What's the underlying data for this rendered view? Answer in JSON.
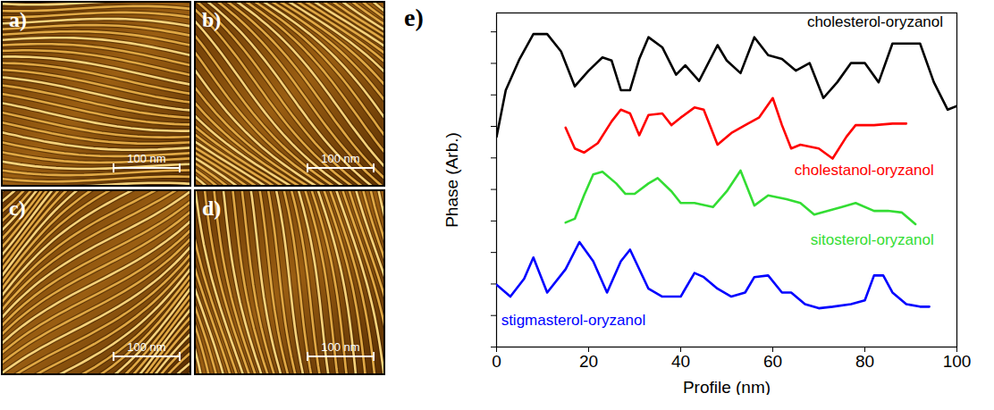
{
  "panels": [
    {
      "label": "a)",
      "scale_bar": "100 nm"
    },
    {
      "label": "b)",
      "scale_bar": "100 nm"
    },
    {
      "label": "c)",
      "scale_bar": "100 nm"
    },
    {
      "label": "d)",
      "scale_bar": "100 nm"
    }
  ],
  "chart_data": {
    "type": "line",
    "panel_label": "e)",
    "x_label": "Profile (nm)",
    "y_label": "Phase (Arb.)",
    "xlim": [
      0,
      100
    ],
    "xticks": [
      0,
      20,
      40,
      60,
      80,
      100
    ],
    "ylim": [
      0,
      106
    ],
    "yticks": [
      0,
      10,
      20,
      30,
      40,
      50,
      60,
      70,
      80,
      90,
      100
    ],
    "tick_labels": "x",
    "series": [
      {
        "name": "cholesterol-oryzanol",
        "color": "#000000",
        "x": [
          0,
          2,
          5,
          8,
          11,
          14,
          17,
          20,
          23,
          25,
          27,
          29,
          31,
          33,
          36,
          39,
          41,
          44,
          48,
          50,
          53,
          56,
          59,
          62,
          65,
          68,
          71,
          74,
          77,
          80,
          83,
          86,
          89,
          92,
          95,
          98,
          100
        ],
        "values": [
          66.7,
          81.5,
          91.4,
          99.3,
          99.3,
          93.8,
          82.7,
          87.7,
          91.9,
          90.9,
          81.5,
          81.5,
          91.4,
          98.3,
          95.1,
          86.4,
          89.4,
          84.4,
          95.8,
          90.9,
          86.9,
          98.3,
          92.6,
          91.4,
          87.7,
          90.1,
          79.0,
          84.0,
          90.1,
          90.1,
          84.0,
          96.3,
          96.3,
          96.3,
          84.0,
          75.3,
          76.5
        ]
      },
      {
        "name": "cholestanol-oryzanol",
        "color": "#ff0000",
        "x": [
          15,
          17,
          19,
          22,
          25,
          27,
          29,
          31,
          33,
          36,
          38,
          40,
          43,
          45,
          48,
          51,
          54,
          57,
          60,
          62,
          64,
          66,
          70,
          73,
          76,
          78,
          82,
          86,
          89
        ],
        "values": [
          69.6,
          63.0,
          61.7,
          64.7,
          71.6,
          75.3,
          74.1,
          67.2,
          73.6,
          74.1,
          70.4,
          72.8,
          76.0,
          75.3,
          64.2,
          67.9,
          70.4,
          72.8,
          79.0,
          70.4,
          63.0,
          64.2,
          63.0,
          59.8,
          66.7,
          70.4,
          70.4,
          70.9,
          70.9
        ]
      },
      {
        "name": "sitosterol-oryzanol",
        "color": "#33dd33",
        "x": [
          15,
          17,
          19,
          21,
          23,
          26,
          28,
          30,
          33,
          35,
          38,
          40,
          43,
          47,
          50,
          53,
          56,
          59,
          63,
          66,
          69,
          72,
          75,
          78,
          82,
          85,
          88,
          91
        ],
        "values": [
          39.5,
          40.7,
          48.1,
          54.8,
          55.6,
          51.9,
          48.6,
          48.6,
          51.9,
          53.6,
          49.4,
          45.7,
          45.7,
          44.4,
          49.4,
          56.0,
          44.9,
          48.1,
          46.9,
          45.7,
          42.0,
          43.2,
          44.4,
          45.7,
          43.2,
          43.2,
          42.7,
          39.0
        ]
      },
      {
        "name": "stigmasterol-oryzanol",
        "color": "#0000ff",
        "x": [
          0,
          3,
          6,
          8,
          11,
          15,
          18,
          21,
          24,
          27,
          29,
          33,
          36,
          40,
          43,
          45,
          48,
          51,
          54,
          56,
          59,
          62,
          64,
          67,
          70,
          73,
          77,
          80,
          82,
          84,
          86,
          89,
          92,
          94
        ],
        "values": [
          19.8,
          16.0,
          21.7,
          28.4,
          17.3,
          24.7,
          33.3,
          27.2,
          17.3,
          27.2,
          30.9,
          18.5,
          16.0,
          16.0,
          23.5,
          22.2,
          18.5,
          16.0,
          17.3,
          22.2,
          22.7,
          17.3,
          17.3,
          13.6,
          12.3,
          12.8,
          13.6,
          14.8,
          22.7,
          22.7,
          17.3,
          13.6,
          12.8,
          12.8
        ]
      }
    ]
  }
}
